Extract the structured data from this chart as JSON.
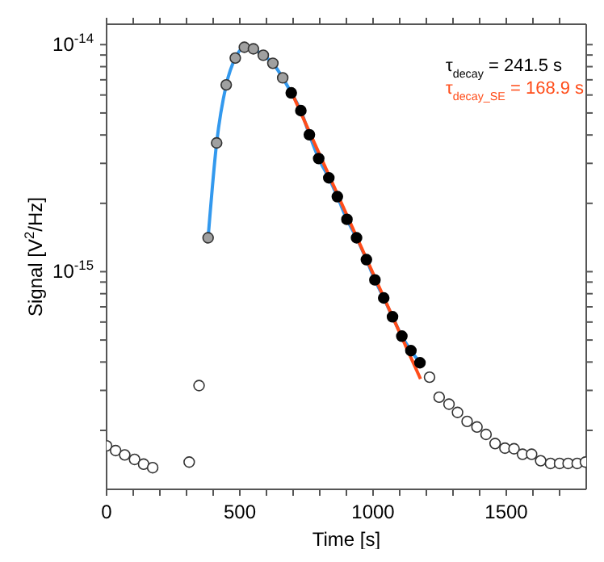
{
  "chart_data": {
    "type": "scatter",
    "xlabel": "Time [s]",
    "ylabel": "Signal [V$^{2}$/Hz]",
    "log": "y",
    "xlim": [
      0,
      1800
    ],
    "xticks": [
      0,
      {
        "value": 100,
        "label": null
      },
      {
        "value": 200,
        "label": null
      },
      {
        "value": 300,
        "label": null
      },
      {
        "value": 400,
        "label": null
      },
      500,
      {
        "value": 600,
        "label": null
      },
      {
        "value": 700,
        "label": null
      },
      {
        "value": 800,
        "label": null
      },
      {
        "value": 900,
        "label": null
      },
      1000,
      {
        "value": 1100,
        "label": null
      },
      {
        "value": 1200,
        "label": null
      },
      {
        "value": 1300,
        "label": null
      },
      {
        "value": 1400,
        "label": null
      },
      1500,
      {
        "value": 1600,
        "label": null
      },
      {
        "value": 1700,
        "label": null
      }
    ],
    "ylim": [
      1.1e-16,
      1.23e-14
    ],
    "yticks": [
      {
        "value": 2e-16,
        "label": null
      },
      {
        "value": 3e-16,
        "label": null
      },
      {
        "value": 4e-16,
        "label": null
      },
      {
        "value": 5e-16,
        "label": null
      },
      {
        "value": 6e-16,
        "label": null
      },
      {
        "value": 7e-16,
        "label": null
      },
      {
        "value": 8e-16,
        "label": null
      },
      {
        "value": 9e-16,
        "label": null
      },
      {
        "value": 1e-15,
        "label": "10$^{-15}$"
      },
      {
        "value": 2e-15,
        "label": null
      },
      {
        "value": 3e-15,
        "label": null
      },
      {
        "value": 4e-15,
        "label": null
      },
      {
        "value": 5e-15,
        "label": null
      },
      {
        "value": 6e-15,
        "label": null
      },
      {
        "value": 7e-15,
        "label": null
      },
      {
        "value": 8e-15,
        "label": null
      },
      {
        "value": 9e-15,
        "label": null
      },
      {
        "value": 1e-14,
        "label": "10$^{-14}$"
      }
    ],
    "grid": false,
    "legend": false,
    "marker": "circle",
    "annotations": [
      "τ$_{decay}$ = 241.5 s",
      "τ$_{decay_SE}$ = 168.9 s"
    ],
    "series": [
      {
        "color": "#ffffff",
        "x": [
          0,
          34,
          68,
          105,
          139,
          173,
          310,
          347,
          1212,
          1248,
          1285,
          1317,
          1353,
          1390,
          1424,
          1458,
          1495,
          1529,
          1561,
          1595,
          1629,
          1666,
          1700,
          1732,
          1766,
          1797
        ],
        "values": [
          1.71e-16,
          1.63e-16,
          1.56e-16,
          1.49e-16,
          1.42e-16,
          1.37e-16,
          1.45e-16,
          3.15e-16,
          3.43e-16,
          2.8e-16,
          2.61e-16,
          2.4e-16,
          2.19e-16,
          2.07e-16,
          1.92e-16,
          1.75e-16,
          1.67e-16,
          1.66e-16,
          1.57e-16,
          1.57e-16,
          1.47e-16,
          1.43e-16,
          1.43e-16,
          1.43e-16,
          1.43e-16,
          1.45e-16
        ]
      },
      {
        "type": "line",
        "marker": "none",
        "color": "#3399ee",
        "x": [
          381,
          413,
          449,
          483,
          517,
          551,
          588,
          624,
          661,
          693,
          729,
          761,
          796,
          834,
          866,
          902,
          938,
          975,
          1007,
          1040,
          1073,
          1108,
          1142,
          1176
        ],
        "values": [
          1.41e-15,
          3.69e-15,
          6.65e-15,
          8.73e-15,
          9.74e-15,
          9.58e-15,
          8.98e-15,
          8.28e-15,
          7.14e-15,
          6.13e-15,
          5.12e-15,
          4.01e-15,
          3.15e-15,
          2.59e-15,
          2.14e-15,
          1.7e-15,
          1.41e-15,
          1.13e-15,
          9.2e-16,
          7.66e-16,
          6.33e-16,
          5.2e-16,
          4.49e-16,
          3.97e-16
        ]
      },
      {
        "color": "#a0a0a0",
        "x": [
          381,
          413,
          449,
          483,
          517,
          551,
          588,
          624,
          661
        ],
        "values": [
          1.41e-15,
          3.69e-15,
          6.65e-15,
          8.73e-15,
          9.74e-15,
          9.58e-15,
          8.98e-15,
          8.28e-15,
          7.14e-15
        ]
      },
      {
        "color": "#000000",
        "x": [
          693,
          729,
          761,
          796,
          834,
          866,
          902,
          938,
          975,
          1007,
          1040,
          1073,
          1108,
          1142,
          1176
        ],
        "values": [
          6.13e-15,
          5.12e-15,
          4.01e-15,
          3.15e-15,
          2.59e-15,
          2.14e-15,
          1.7e-15,
          1.41e-15,
          1.13e-15,
          9.2e-16,
          7.66e-16,
          6.33e-16,
          5.2e-16,
          4.49e-16,
          3.97e-16
        ]
      },
      {
        "type": "line",
        "marker": "none",
        "color": "#ff4d1a",
        "x": [
          689,
          1178
        ],
        "values": [
          6.37e-15,
          3.37e-16
        ]
      }
    ]
  }
}
